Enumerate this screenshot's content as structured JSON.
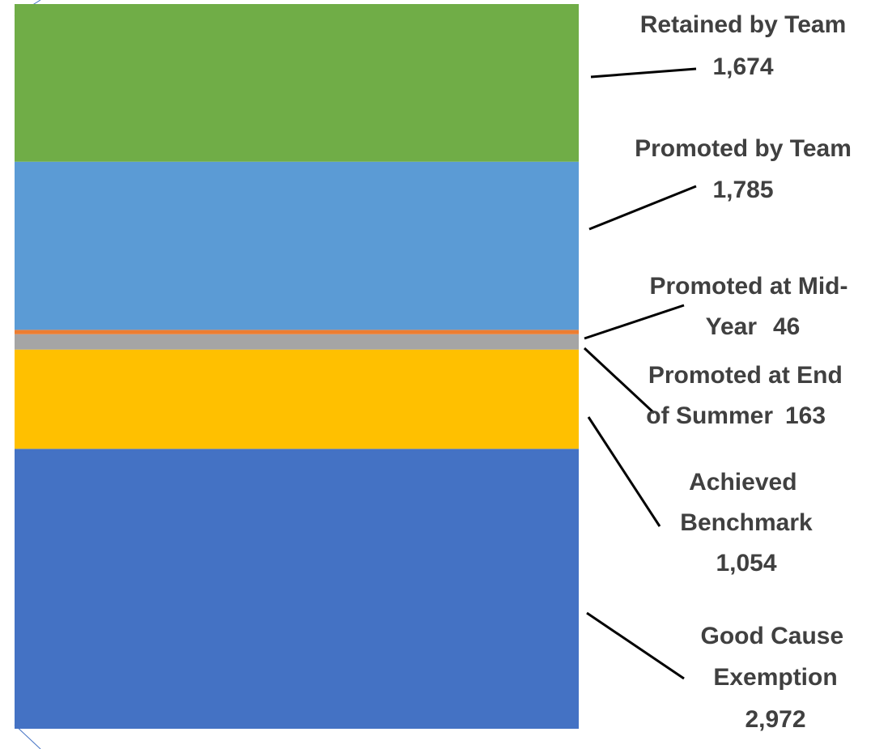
{
  "chart_data": {
    "type": "stacked_bar",
    "series": [
      {
        "name": "Good Cause Exemption",
        "color": "#4472c4",
        "values": [
          2972
        ],
        "value_labels": [
          "2,972"
        ]
      },
      {
        "name": "Achieved Benchmark",
        "color": "#ffc000",
        "values": [
          1054
        ],
        "value_labels": [
          "1,054"
        ]
      },
      {
        "name": "Promoted at End of Summer",
        "color": "#a5a5a5",
        "values": [
          163
        ]
      },
      {
        "name": "Promoted at Mid-Year",
        "color": "#ed7d31",
        "values": [
          46
        ]
      },
      {
        "name": "Promoted by Team",
        "color": "#5b9bd5",
        "values": [
          1785
        ],
        "value_labels": [
          "1,785"
        ]
      },
      {
        "name": "Retained by Team",
        "color": "#70ad47",
        "values": [
          1674
        ],
        "value_labels": [
          "1,674"
        ]
      }
    ]
  }
}
